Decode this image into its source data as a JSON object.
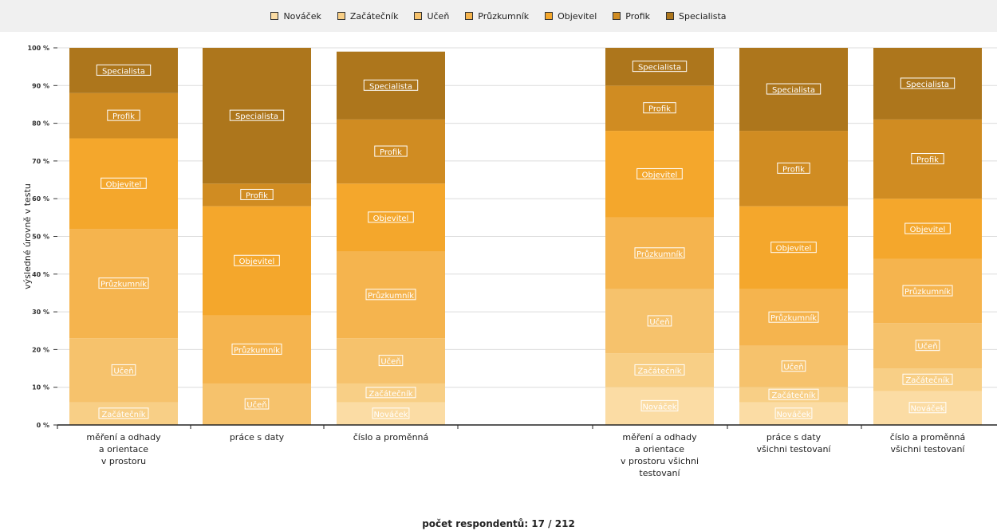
{
  "chart_data": {
    "type": "bar",
    "stacked": true,
    "ylabel": "výsledné úrovně v testu",
    "ylim": [
      0,
      100
    ],
    "yticks": [
      0,
      10,
      20,
      30,
      40,
      50,
      60,
      70,
      80,
      90,
      100
    ],
    "ytick_suffix": " %",
    "grid": true,
    "legend_position": "top",
    "categories": [
      [
        "měření a odhady",
        "a orientace",
        "v prostoru"
      ],
      [
        "práce s daty"
      ],
      [
        "číslo a proměnná"
      ],
      [
        "měření a odhady",
        "a orientace",
        "v prostoru všichni",
        "testovaní"
      ],
      [
        "práce s daty",
        "všichni testovaní"
      ],
      [
        "číslo a proměnná",
        "všichni testovaní"
      ]
    ],
    "series": [
      {
        "name": "Nováček",
        "color": "#fbdca4",
        "values": [
          0,
          0,
          6,
          10,
          6,
          9
        ]
      },
      {
        "name": "Začátečník",
        "color": "#f8cf86",
        "values": [
          6,
          0,
          5,
          9,
          4,
          6
        ]
      },
      {
        "name": "Učeň",
        "color": "#f6c26c",
        "values": [
          17,
          11,
          12,
          17,
          11,
          12
        ]
      },
      {
        "name": "Průzkumník",
        "color": "#f5b44e",
        "values": [
          29,
          18,
          23,
          19,
          15,
          17
        ]
      },
      {
        "name": "Objevitel",
        "color": "#f4a72c",
        "values": [
          24,
          29,
          18,
          23,
          22,
          16
        ]
      },
      {
        "name": "Profik",
        "color": "#d08c22",
        "values": [
          12,
          6,
          17,
          12,
          20,
          21
        ]
      },
      {
        "name": "Specialista",
        "color": "#ad761c",
        "values": [
          12,
          36,
          18,
          10,
          22,
          19
        ]
      }
    ]
  },
  "footer": {
    "respondents": "počet respondentů: 17 / 212"
  }
}
